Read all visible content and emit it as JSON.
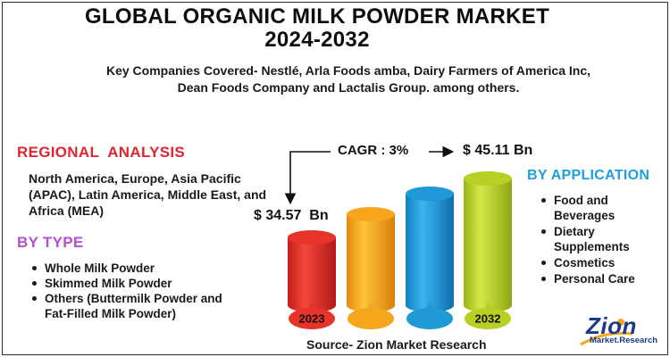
{
  "title_line1": "GLOBAL ORGANIC MILK POWDER MARKET",
  "title_line2": "2024-2032",
  "companies_line1": "Key Companies Covered- Nestlé, Arla Foods amba, Dairy Farmers of America Inc,",
  "companies_line2": "Dean Foods Company and Lactalis Group. among others.",
  "regional": {
    "heading": "REGIONAL  ANALYSIS",
    "text": "North America, Europe, Asia Pacific (APAC), Latin America, Middle East, and Africa (MEA)"
  },
  "by_type": {
    "heading": "BY TYPE",
    "items": [
      "Whole Milk Powder",
      "Skimmed Milk Powder",
      "Others (Buttermilk Powder and Fat-Filled Milk Powder)"
    ]
  },
  "by_application": {
    "heading": "BY APPLICATION",
    "items": [
      "Food and Beverages",
      "Dietary Supplements",
      "Cosmetics",
      "Personal Care"
    ]
  },
  "cagr_label": "CAGR : 3%",
  "value_start": "$ 34.57  Bn",
  "value_end": "$ 45.11 Bn",
  "source": "Source- Zion Market Research",
  "logo": {
    "name": "Zion",
    "sub1": "Market",
    "sub2": "Research"
  },
  "colors": {
    "red": "#e8332b",
    "orange": "#f6a61b",
    "blue": "#1f9ad6",
    "green": "#b8cf23",
    "heading_red": "#e0262e",
    "heading_purple": "#b44fd0",
    "heading_blue": "#1e9fd8"
  },
  "chart_data": {
    "type": "bar",
    "categories": [
      "2023",
      "",
      "",
      "2032"
    ],
    "values": [
      34.57,
      null,
      null,
      45.11
    ],
    "value_labels": [
      "$ 34.57  Bn",
      "",
      "",
      "$ 45.11 Bn"
    ],
    "annotation": "CAGR : 3%",
    "bar_colors": [
      "#e8332b",
      "#f6a61b",
      "#1f9ad6",
      "#b8cf23"
    ]
  }
}
